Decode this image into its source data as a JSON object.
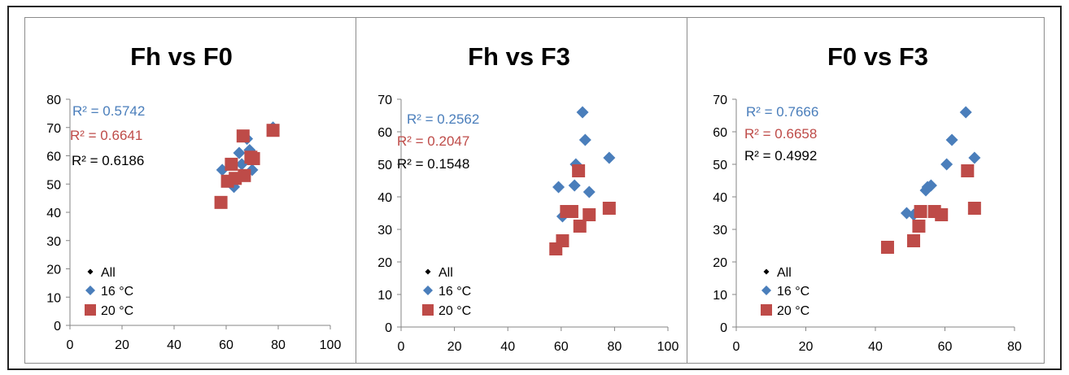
{
  "colors": {
    "all": "#000000",
    "c16": "#4a7ebb",
    "c20": "#be4b48",
    "axis": "#868686"
  },
  "icons": {
    "all": "diamond-marker",
    "c16": "diamond-marker",
    "c20": "square-marker"
  },
  "chart_data": [
    {
      "type": "scatter",
      "title": "Fh vs F0",
      "xlim": [
        0,
        100
      ],
      "xticks": [
        0,
        20,
        40,
        60,
        80,
        100
      ],
      "ylim": [
        0,
        80
      ],
      "yticks": [
        0,
        10,
        20,
        30,
        40,
        50,
        60,
        70,
        80
      ],
      "legend": [
        "All",
        "16 °C",
        "20 °C"
      ],
      "legend_position": "bottom-left",
      "r2": [
        {
          "text": "R² = 0.5742",
          "series": "16 °C"
        },
        {
          "text": "R² = 0.6641",
          "series": "20 °C"
        },
        {
          "text": "R² = 0.6186",
          "series": "All"
        }
      ],
      "series": [
        {
          "name": "16 °C",
          "marker": "diamond",
          "points": [
            [
              58.5,
              55
            ],
            [
              62,
              52
            ],
            [
              63,
              49
            ],
            [
              65,
              61
            ],
            [
              66,
              57
            ],
            [
              68,
              66
            ],
            [
              69,
              62
            ],
            [
              70,
              55
            ],
            [
              78,
              70
            ]
          ]
        },
        {
          "name": "20 °C",
          "marker": "square",
          "points": [
            [
              58,
              43.5
            ],
            [
              60.5,
              51
            ],
            [
              62,
              57
            ],
            [
              63.5,
              52
            ],
            [
              66.5,
              67
            ],
            [
              67,
              53
            ],
            [
              69.5,
              59.5
            ],
            [
              70.5,
              59
            ],
            [
              78,
              69
            ]
          ]
        }
      ]
    },
    {
      "type": "scatter",
      "title": "Fh vs F3",
      "xlim": [
        0,
        100
      ],
      "xticks": [
        0,
        20,
        40,
        60,
        80,
        100
      ],
      "ylim": [
        0,
        70
      ],
      "yticks": [
        0,
        10,
        20,
        30,
        40,
        50,
        60,
        70
      ],
      "legend": [
        "All",
        "16 °C",
        "20 °C"
      ],
      "legend_position": "bottom-left",
      "r2": [
        {
          "text": "R² = 0.2562",
          "series": "16 °C"
        },
        {
          "text": "R² = 0.2047",
          "series": "20 °C"
        },
        {
          "text": "R² = 0.1548",
          "series": "All"
        }
      ],
      "series": [
        {
          "name": "16 °C",
          "marker": "diamond",
          "points": [
            [
              59,
              43
            ],
            [
              60.5,
              34
            ],
            [
              65,
              43.5
            ],
            [
              65.5,
              50
            ],
            [
              68,
              66
            ],
            [
              69,
              57.5
            ],
            [
              70.5,
              41.5
            ],
            [
              78,
              52
            ]
          ]
        },
        {
          "name": "20 °C",
          "marker": "square",
          "points": [
            [
              58,
              24
            ],
            [
              60.5,
              26.5
            ],
            [
              62,
              35.5
            ],
            [
              64,
              35.5
            ],
            [
              66.5,
              48
            ],
            [
              67,
              31
            ],
            [
              70.5,
              34.5
            ],
            [
              78,
              36.5
            ]
          ]
        }
      ]
    },
    {
      "type": "scatter",
      "title": "F0 vs F3",
      "xlim": [
        0,
        80
      ],
      "xticks": [
        0,
        20,
        40,
        60,
        80
      ],
      "ylim": [
        0,
        70
      ],
      "yticks": [
        0,
        10,
        20,
        30,
        40,
        50,
        60,
        70
      ],
      "legend": [
        "All",
        "16 °C",
        "20 °C"
      ],
      "legend_position": "bottom-left",
      "r2": [
        {
          "text": "R² = 0.7666",
          "series": "16 °C"
        },
        {
          "text": "R² = 0.6658",
          "series": "20 °C"
        },
        {
          "text": "R² = 0.4992",
          "series": "All"
        }
      ],
      "series": [
        {
          "name": "16 °C",
          "marker": "diamond",
          "points": [
            [
              49,
              35
            ],
            [
              51,
              34.5
            ],
            [
              54.5,
              42
            ],
            [
              55,
              43
            ],
            [
              56,
              43.5
            ],
            [
              60.5,
              50
            ],
            [
              62,
              57.5
            ],
            [
              66,
              66
            ],
            [
              68.5,
              52
            ]
          ]
        },
        {
          "name": "20 °C",
          "marker": "square",
          "points": [
            [
              43.5,
              24.5
            ],
            [
              51,
              26.5
            ],
            [
              52.5,
              31
            ],
            [
              53,
              35.5
            ],
            [
              57,
              35.5
            ],
            [
              59,
              34.5
            ],
            [
              66.5,
              48
            ],
            [
              68.5,
              36.5
            ]
          ]
        }
      ]
    }
  ]
}
